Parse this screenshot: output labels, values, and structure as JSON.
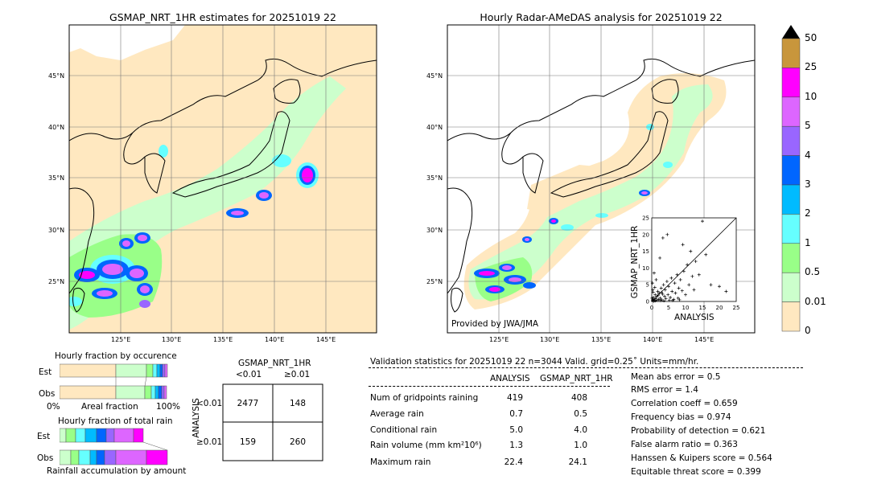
{
  "left_map": {
    "title": "GSMAP_NRT_1HR estimates for 20251019 22",
    "lat_labels": [
      "45°N",
      "40°N",
      "35°N",
      "30°N",
      "25°N"
    ],
    "lon_labels": [
      "125°E",
      "130°E",
      "135°E",
      "140°E",
      "145°E"
    ]
  },
  "right_map": {
    "title": "Hourly Radar-AMeDAS analysis for 20251019 22",
    "lat_labels": [
      "45°N",
      "40°N",
      "35°N",
      "30°N",
      "25°N"
    ],
    "lon_labels": [
      "125°E",
      "130°E",
      "135°E",
      "140°E",
      "145°E"
    ],
    "credit": "Provided by JWA/JMA"
  },
  "colorbar": {
    "labels": [
      "50",
      "25",
      "10",
      "5",
      "4",
      "3",
      "2",
      "1",
      "0.5",
      "0.01",
      "0"
    ],
    "colors": [
      "#c8963c",
      "#ff00ff",
      "#dd66ff",
      "#9966ff",
      "#0066ff",
      "#00bbff",
      "#66ffff",
      "#99ff88",
      "#ccffcc",
      "#ffe8c0"
    ]
  },
  "occurrence": {
    "title": "Hourly fraction by occurence",
    "row_est": "Est",
    "row_obs": "Obs",
    "axis_left": "0%",
    "axis_mid": "Areal fraction",
    "axis_right": "100%"
  },
  "total_rain": {
    "title": "Hourly fraction of total rain",
    "row_est": "Est",
    "row_obs": "Obs",
    "caption": "Rainfall accumulation by amount"
  },
  "contingency": {
    "col_header": "GSMAP_NRT_1HR",
    "col_lt": "<0.01",
    "col_ge": "≥0.01",
    "row_header": "ANALYSIS",
    "row_lt": "<0.01",
    "row_ge": "≥0.01",
    "cells": [
      "2477",
      "148",
      "159",
      "260"
    ]
  },
  "validation": {
    "header": "Validation statistics for 20251019 22  n=3044 Valid. grid=0.25˚ Units=mm/hr.",
    "col_analysis": "ANALYSIS",
    "col_gsmap": "GSMAP_NRT_1HR",
    "rows": [
      {
        "label": "Num of gridpoints raining",
        "a": "419",
        "g": "408"
      },
      {
        "label": "Average rain",
        "a": "0.7",
        "g": "0.5"
      },
      {
        "label": "Conditional rain",
        "a": "5.0",
        "g": "4.0"
      },
      {
        "label": "Rain volume (mm km²10⁶)",
        "a": "1.3",
        "g": "1.0"
      },
      {
        "label": "Maximum rain",
        "a": "22.4",
        "g": "24.1"
      }
    ],
    "scores": [
      "Mean abs error =    0.5",
      "RMS error =    1.4",
      "Correlation coeff =  0.659",
      "Frequency bias =  0.974",
      "Probability of detection =  0.621",
      "False alarm ratio =  0.363",
      "Hanssen & Kuipers score =  0.564",
      "Equitable threat score =  0.399"
    ]
  },
  "chart_data": {
    "type": "scatter",
    "xlabel": "ANALYSIS",
    "ylabel": "GSMAP_NRT_1HR",
    "xlim": [
      0,
      25
    ],
    "ylim": [
      0,
      25
    ],
    "ticks": [
      "0",
      "5",
      "10",
      "15",
      "20",
      "25"
    ],
    "diagonal": true,
    "points": [
      [
        0.3,
        0.5
      ],
      [
        0.5,
        1.2
      ],
      [
        0.8,
        0.3
      ],
      [
        1.0,
        2.0
      ],
      [
        1.2,
        0.8
      ],
      [
        1.5,
        1.5
      ],
      [
        1.8,
        3.0
      ],
      [
        2.0,
        0.6
      ],
      [
        2.2,
        2.5
      ],
      [
        2.5,
        1.0
      ],
      [
        2.8,
        4.0
      ],
      [
        3.0,
        0.5
      ],
      [
        3.2,
        2.2
      ],
      [
        3.5,
        5.0
      ],
      [
        3.8,
        1.5
      ],
      [
        4.0,
        3.5
      ],
      [
        4.2,
        0.8
      ],
      [
        4.5,
        6.0
      ],
      [
        4.8,
        2.0
      ],
      [
        5.0,
        4.5
      ],
      [
        5.5,
        1.2
      ],
      [
        5.8,
        7.0
      ],
      [
        6.0,
        3.0
      ],
      [
        6.5,
        0.6
      ],
      [
        6.8,
        5.5
      ],
      [
        7.0,
        2.5
      ],
      [
        7.5,
        8.0
      ],
      [
        7.8,
        1.0
      ],
      [
        8.0,
        4.0
      ],
      [
        8.5,
        6.5
      ],
      [
        9.0,
        3.2
      ],
      [
        9.5,
        9.0
      ],
      [
        10.0,
        2.0
      ],
      [
        10.5,
        11.0
      ],
      [
        11.0,
        5.0
      ],
      [
        12.0,
        7.5
      ],
      [
        12.5,
        3.5
      ],
      [
        13.0,
        12.0
      ],
      [
        14.0,
        8.0
      ],
      [
        15.0,
        24.0
      ],
      [
        16.0,
        14.0
      ],
      [
        17.5,
        5.0
      ],
      [
        20.0,
        4.5
      ],
      [
        22.0,
        3.0
      ],
      [
        0.2,
        0.2
      ],
      [
        0.6,
        0.1
      ],
      [
        1.1,
        0.2
      ],
      [
        0.4,
        2.8
      ],
      [
        0.9,
        4.2
      ],
      [
        1.3,
        6.5
      ],
      [
        0.7,
        8.5
      ],
      [
        2.4,
        13.0
      ],
      [
        3.3,
        19.0
      ],
      [
        4.6,
        20.0
      ],
      [
        1.6,
        0.4
      ],
      [
        2.6,
        0.3
      ],
      [
        3.6,
        0.2
      ],
      [
        5.2,
        0.4
      ],
      [
        6.2,
        0.3
      ],
      [
        8.2,
        0.5
      ],
      [
        1.9,
        1.9
      ],
      [
        2.9,
        2.7
      ],
      [
        0.1,
        1.0
      ],
      [
        0.3,
        3.5
      ],
      [
        0.5,
        0.6
      ],
      [
        0.2,
        5.5
      ],
      [
        11.5,
        15.0
      ],
      [
        9.2,
        17.0
      ]
    ]
  }
}
